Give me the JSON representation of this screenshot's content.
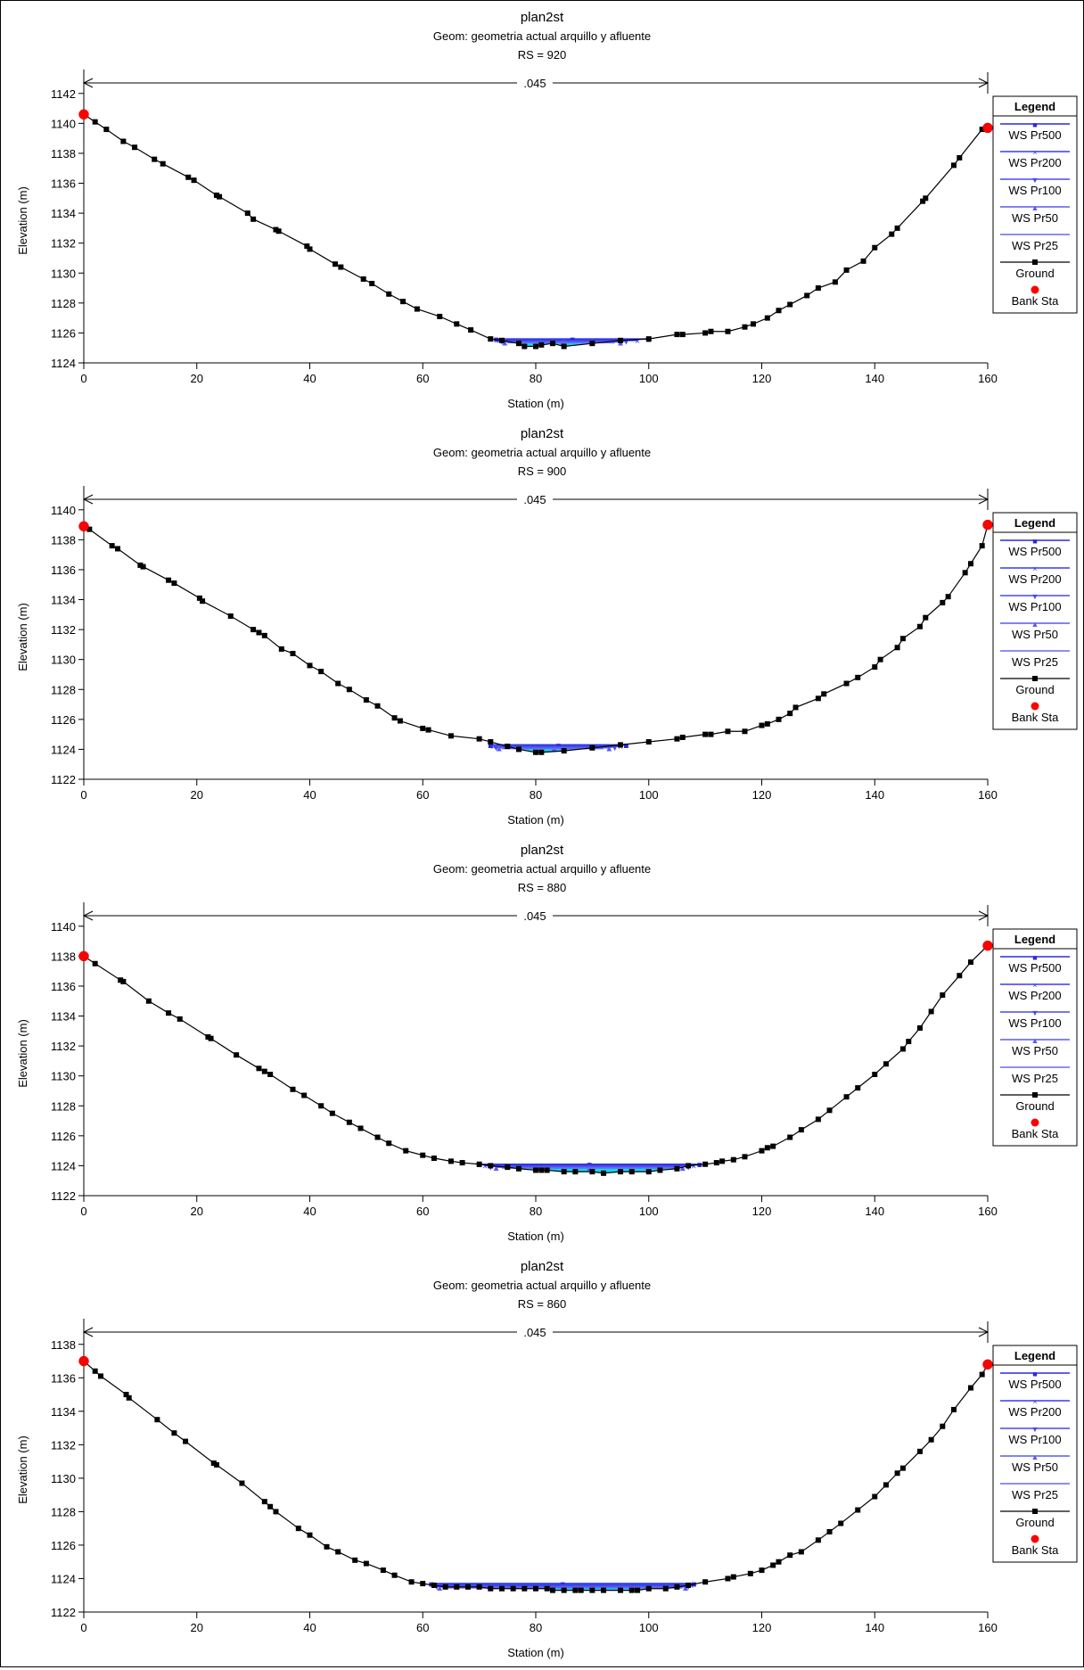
{
  "chart_data": [
    {
      "type": "line",
      "title": "plan2st",
      "subtitle": "Geom: geometria actual arquillo y afluente",
      "rs_label": "RS = 920",
      "xlabel": "Station (m)",
      "ylabel": "Elevation (m)",
      "xlim": [
        0,
        160
      ],
      "ylim": [
        1124,
        1143
      ],
      "x_ticks": [
        "0",
        "20",
        "40",
        "60",
        "80",
        "100",
        "120",
        "140",
        "160"
      ],
      "y_ticks": [
        "1124",
        "1126",
        "1128",
        "1130",
        "1132",
        "1134",
        "1136",
        "1138",
        "1140",
        "1142"
      ],
      "mannings_n": ".045",
      "legend_title": "Legend",
      "legend": [
        "WS Pr500",
        "WS Pr200",
        "WS Pr100",
        "WS Pr50",
        "WS Pr25",
        "Ground",
        "Bank Sta"
      ],
      "ground": {
        "x": [
          0,
          2,
          4,
          7,
          9,
          12.5,
          14,
          18.5,
          19.5,
          23.5,
          24,
          29,
          30,
          34,
          34.5,
          39.5,
          40,
          44.5,
          45.5,
          49.5,
          51,
          54,
          56.5,
          59,
          63,
          66,
          68.5,
          72,
          74,
          77,
          78,
          80,
          81,
          83,
          85,
          90,
          95,
          100,
          105,
          106,
          110,
          111,
          114,
          117,
          118.5,
          121,
          123,
          125,
          128,
          130,
          133,
          135,
          138,
          140,
          143,
          144,
          148.5,
          149,
          154,
          155,
          159,
          160
        ],
        "y": [
          1140.6,
          1140.1,
          1139.6,
          1138.8,
          1138.4,
          1137.6,
          1137.3,
          1136.4,
          1136.2,
          1135.2,
          1135.1,
          1134.0,
          1133.6,
          1132.9,
          1132.8,
          1131.8,
          1131.6,
          1130.6,
          1130.4,
          1129.6,
          1129.3,
          1128.6,
          1128.1,
          1127.6,
          1127.1,
          1126.6,
          1126.2,
          1125.6,
          1125.5,
          1125.3,
          1125.1,
          1125.1,
          1125.2,
          1125.3,
          1125.1,
          1125.3,
          1125.5,
          1125.6,
          1125.9,
          1125.9,
          1126.0,
          1126.1,
          1126.1,
          1126.4,
          1126.6,
          1127.0,
          1127.5,
          1127.9,
          1128.5,
          1129.0,
          1129.4,
          1130.2,
          1130.8,
          1131.7,
          1132.6,
          1133.0,
          1134.8,
          1135.0,
          1137.2,
          1137.7,
          1139.6,
          1139.7
        ]
      },
      "water_surfaces": [
        {
          "name": "WS Pr500",
          "elevation": 1125.6,
          "x_left": 73,
          "x_right": 100
        },
        {
          "name": "WS Pr200",
          "elevation": 1125.5,
          "x_left": 73.5,
          "x_right": 98
        },
        {
          "name": "WS Pr100",
          "elevation": 1125.45,
          "x_left": 74,
          "x_right": 96
        },
        {
          "name": "WS Pr50",
          "elevation": 1125.4,
          "x_left": 74.5,
          "x_right": 95
        },
        {
          "name": "WS Pr25",
          "elevation": 1125.35,
          "x_left": 75,
          "x_right": 94
        }
      ],
      "bank_stations": [
        {
          "x": 0,
          "y": 1140.6
        },
        {
          "x": 160,
          "y": 1139.7
        }
      ]
    },
    {
      "type": "line",
      "title": "plan2st",
      "subtitle": "Geom: geometria actual arquillo y afluente",
      "rs_label": "RS = 900",
      "xlabel": "Station (m)",
      "ylabel": "Elevation (m)",
      "xlim": [
        0,
        160
      ],
      "ylim": [
        1122,
        1141
      ],
      "x_ticks": [
        "0",
        "20",
        "40",
        "60",
        "80",
        "100",
        "120",
        "140",
        "160"
      ],
      "y_ticks": [
        "1122",
        "1124",
        "1126",
        "1128",
        "1130",
        "1132",
        "1134",
        "1136",
        "1138",
        "1140"
      ],
      "mannings_n": ".045",
      "legend_title": "Legend",
      "legend": [
        "WS Pr500",
        "WS Pr200",
        "WS Pr100",
        "WS Pr50",
        "WS Pr25",
        "Ground",
        "Bank Sta"
      ],
      "ground": {
        "x": [
          0,
          1,
          5,
          6,
          10,
          10.5,
          15,
          16,
          20.5,
          21,
          26,
          30,
          31,
          32,
          35,
          37,
          40,
          42,
          45,
          47,
          50,
          52,
          55,
          56,
          60,
          61,
          65,
          70,
          72,
          75,
          77,
          80,
          81,
          85,
          90,
          95,
          100,
          105,
          106,
          110,
          111,
          114,
          117,
          120,
          121,
          123,
          125,
          126,
          130,
          131,
          135,
          137,
          140,
          141,
          144,
          145,
          148,
          149,
          152,
          153,
          156,
          157,
          159,
          160
        ],
        "y": [
          1138.9,
          1138.7,
          1137.6,
          1137.4,
          1136.3,
          1136.2,
          1135.3,
          1135.1,
          1134.1,
          1133.9,
          1132.9,
          1132.0,
          1131.8,
          1131.6,
          1130.7,
          1130.4,
          1129.6,
          1129.2,
          1128.4,
          1128.0,
          1127.3,
          1126.9,
          1126.1,
          1125.9,
          1125.4,
          1125.3,
          1124.9,
          1124.7,
          1124.5,
          1124.2,
          1124.0,
          1123.8,
          1123.8,
          1123.9,
          1124.1,
          1124.3,
          1124.5,
          1124.7,
          1124.8,
          1125.0,
          1125.0,
          1125.2,
          1125.2,
          1125.6,
          1125.7,
          1126.0,
          1126.4,
          1126.8,
          1127.4,
          1127.7,
          1128.4,
          1128.8,
          1129.5,
          1130.0,
          1130.8,
          1131.4,
          1132.2,
          1132.8,
          1133.8,
          1134.2,
          1135.8,
          1136.4,
          1137.6,
          1139.0
        ]
      },
      "water_surfaces": [
        {
          "name": "WS Pr500",
          "elevation": 1124.3,
          "x_left": 72,
          "x_right": 96
        },
        {
          "name": "WS Pr200",
          "elevation": 1124.2,
          "x_left": 72.5,
          "x_right": 95
        },
        {
          "name": "WS Pr100",
          "elevation": 1124.15,
          "x_left": 73,
          "x_right": 94
        },
        {
          "name": "WS Pr50",
          "elevation": 1124.1,
          "x_left": 73.5,
          "x_right": 93
        },
        {
          "name": "WS Pr25",
          "elevation": 1124.05,
          "x_left": 74,
          "x_right": 92
        }
      ],
      "bank_stations": [
        {
          "x": 0,
          "y": 1138.9
        },
        {
          "x": 160,
          "y": 1139.0
        }
      ]
    },
    {
      "type": "line",
      "title": "plan2st",
      "subtitle": "Geom: geometria actual arquillo y afluente",
      "rs_label": "RS = 880",
      "xlabel": "Station (m)",
      "ylabel": "Elevation (m)",
      "xlim": [
        0,
        160
      ],
      "ylim": [
        1122,
        1141
      ],
      "x_ticks": [
        "0",
        "20",
        "40",
        "60",
        "80",
        "100",
        "120",
        "140",
        "160"
      ],
      "y_ticks": [
        "1122",
        "1124",
        "1126",
        "1128",
        "1130",
        "1132",
        "1134",
        "1136",
        "1138",
        "1140"
      ],
      "mannings_n": ".045",
      "legend_title": "Legend",
      "legend": [
        "WS Pr500",
        "WS Pr200",
        "WS Pr100",
        "WS Pr50",
        "WS Pr25",
        "Ground",
        "Bank Sta"
      ],
      "ground": {
        "x": [
          0,
          2,
          6.5,
          7,
          11.5,
          15,
          17,
          22,
          22.5,
          27,
          31,
          32,
          33,
          37,
          39,
          42,
          44,
          47,
          49,
          52,
          54,
          57,
          60,
          62,
          65,
          67,
          70,
          72,
          75,
          77,
          80,
          81,
          82,
          85,
          87,
          90,
          92,
          95,
          97,
          100,
          102,
          105,
          107,
          110,
          112,
          113,
          115,
          117,
          120,
          121,
          122,
          125,
          127,
          130,
          132,
          135,
          137,
          140,
          142,
          145,
          146,
          148,
          150,
          152,
          155,
          157,
          160
        ],
        "y": [
          1138.0,
          1137.5,
          1136.4,
          1136.3,
          1135.0,
          1134.2,
          1133.8,
          1132.6,
          1132.5,
          1131.4,
          1130.5,
          1130.3,
          1130.1,
          1129.1,
          1128.7,
          1128.0,
          1127.5,
          1126.9,
          1126.5,
          1125.9,
          1125.5,
          1125.0,
          1124.7,
          1124.5,
          1124.3,
          1124.2,
          1124.1,
          1124.0,
          1123.9,
          1123.8,
          1123.7,
          1123.7,
          1123.7,
          1123.6,
          1123.6,
          1123.6,
          1123.5,
          1123.6,
          1123.6,
          1123.6,
          1123.7,
          1123.8,
          1124.0,
          1124.1,
          1124.2,
          1124.3,
          1124.4,
          1124.6,
          1125.0,
          1125.2,
          1125.3,
          1125.9,
          1126.4,
          1127.1,
          1127.7,
          1128.6,
          1129.2,
          1130.1,
          1130.8,
          1131.8,
          1132.3,
          1133.2,
          1134.3,
          1135.4,
          1136.7,
          1137.6,
          1138.7
        ]
      },
      "water_surfaces": [
        {
          "name": "WS Pr500",
          "elevation": 1124.1,
          "x_left": 70,
          "x_right": 109
        },
        {
          "name": "WS Pr200",
          "elevation": 1124.0,
          "x_left": 71,
          "x_right": 108
        },
        {
          "name": "WS Pr100",
          "elevation": 1123.95,
          "x_left": 72,
          "x_right": 107
        },
        {
          "name": "WS Pr50",
          "elevation": 1123.9,
          "x_left": 73,
          "x_right": 106
        },
        {
          "name": "WS Pr25",
          "elevation": 1123.85,
          "x_left": 74,
          "x_right": 105
        }
      ],
      "bank_stations": [
        {
          "x": 0,
          "y": 1138.0
        },
        {
          "x": 160,
          "y": 1138.7
        }
      ]
    },
    {
      "type": "line",
      "title": "plan2st",
      "subtitle": "Geom: geometria actual arquillo y afluente",
      "rs_label": "RS = 860",
      "xlabel": "Station (m)",
      "ylabel": "Elevation (m)",
      "xlim": [
        0,
        160
      ],
      "ylim": [
        1122,
        1139
      ],
      "x_ticks": [
        "0",
        "20",
        "40",
        "60",
        "80",
        "100",
        "120",
        "140",
        "160"
      ],
      "y_ticks": [
        "1122",
        "1124",
        "1126",
        "1128",
        "1130",
        "1132",
        "1134",
        "1136",
        "1138"
      ],
      "mannings_n": ".045",
      "legend_title": "Legend",
      "legend": [
        "WS Pr500",
        "WS Pr200",
        "WS Pr100",
        "WS Pr50",
        "WS Pr25",
        "Ground",
        "Bank Sta"
      ],
      "ground": {
        "x": [
          0,
          2,
          3,
          7.5,
          8,
          13,
          16,
          18,
          23,
          23.5,
          28,
          32,
          33,
          34,
          38,
          40,
          43,
          45,
          48,
          50,
          53,
          55,
          58,
          60,
          62,
          64,
          66,
          68,
          70,
          72,
          74,
          76,
          78,
          80,
          82,
          83,
          85,
          87,
          88,
          90,
          92,
          95,
          97,
          98,
          100,
          103,
          105,
          107,
          110,
          114,
          115,
          118,
          120,
          122,
          123,
          125,
          127,
          130,
          132,
          134,
          137,
          140,
          142,
          144,
          145,
          148,
          150,
          152,
          154,
          157,
          159,
          160
        ],
        "y": [
          1137.0,
          1136.4,
          1136.1,
          1135.0,
          1134.8,
          1133.5,
          1132.7,
          1132.2,
          1130.9,
          1130.8,
          1129.7,
          1128.6,
          1128.3,
          1128.0,
          1127.0,
          1126.6,
          1125.9,
          1125.6,
          1125.1,
          1124.9,
          1124.5,
          1124.2,
          1123.8,
          1123.7,
          1123.6,
          1123.5,
          1123.5,
          1123.5,
          1123.5,
          1123.4,
          1123.4,
          1123.4,
          1123.4,
          1123.4,
          1123.4,
          1123.3,
          1123.3,
          1123.3,
          1123.3,
          1123.3,
          1123.3,
          1123.3,
          1123.3,
          1123.3,
          1123.4,
          1123.4,
          1123.5,
          1123.6,
          1123.8,
          1124.0,
          1124.1,
          1124.3,
          1124.5,
          1124.8,
          1125.0,
          1125.4,
          1125.6,
          1126.3,
          1126.8,
          1127.3,
          1128.1,
          1128.9,
          1129.6,
          1130.3,
          1130.6,
          1131.6,
          1132.3,
          1133.1,
          1134.1,
          1135.4,
          1136.2,
          1136.8
        ]
      },
      "water_surfaces": [
        {
          "name": "WS Pr500",
          "elevation": 1123.7,
          "x_left": 61.5,
          "x_right": 108
        },
        {
          "name": "WS Pr200",
          "elevation": 1123.6,
          "x_left": 62,
          "x_right": 107.5
        },
        {
          "name": "WS Pr100",
          "elevation": 1123.55,
          "x_left": 62.5,
          "x_right": 107
        },
        {
          "name": "WS Pr50",
          "elevation": 1123.5,
          "x_left": 63,
          "x_right": 106.5
        },
        {
          "name": "WS Pr25",
          "elevation": 1123.45,
          "x_left": 63.5,
          "x_right": 106
        }
      ],
      "bank_stations": [
        {
          "x": 0,
          "y": 1137.0
        },
        {
          "x": 160,
          "y": 1136.8
        }
      ]
    }
  ]
}
